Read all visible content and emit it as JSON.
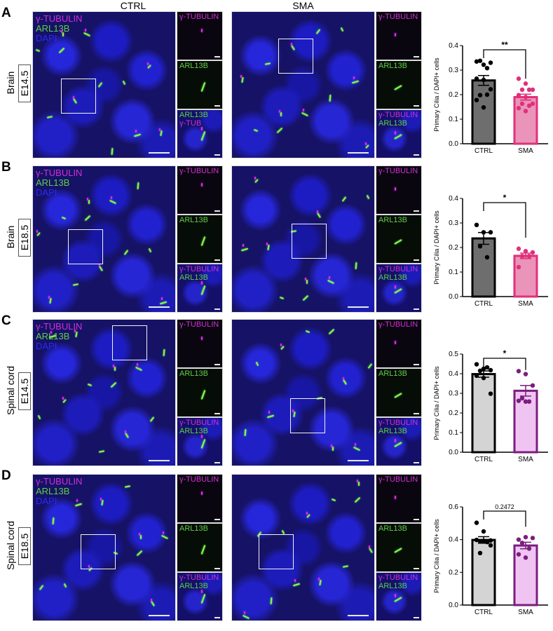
{
  "figure": {
    "columns": {
      "ctrl": "CTRL",
      "sma": "SMA"
    },
    "rows": [
      {
        "letter": "A",
        "tissue": "Brain",
        "stage": "E14.5",
        "main_labels": [
          "γ-TUBULIN",
          "ARL13B",
          "DAPI"
        ],
        "ctrl_insets": [
          [
            "γ-TUBULIN"
          ],
          [
            "ARL13B"
          ],
          [
            "ARL13B",
            "γ-TUB"
          ]
        ],
        "sma_insets": [
          [
            "γ-TUBULIN"
          ],
          [
            "ARL13B"
          ],
          [
            "γ-TUBULIN",
            "ARL13B"
          ]
        ]
      },
      {
        "letter": "B",
        "tissue": "Brain",
        "stage": "E18.5",
        "main_labels": [
          "γ-TUBULIN",
          "ARL13B",
          "DAPI"
        ],
        "ctrl_insets": [
          [
            "γ-TUBULIN"
          ],
          [
            "ARL13B"
          ],
          [
            "γ-TUBULIN",
            "ARL13B"
          ]
        ],
        "sma_insets": [
          [
            "γ-TUBULIN"
          ],
          [
            "ARL13B"
          ],
          [
            "γ-TUBULIN",
            "ARL13B"
          ]
        ]
      },
      {
        "letter": "C",
        "tissue": "Spinal cord",
        "stage": "E14.5",
        "main_labels": [
          "γ-TUBULIN",
          "ARL13B",
          "DAPI"
        ],
        "ctrl_insets": [
          [
            "γ-TUBULIN"
          ],
          [
            "ARL13B"
          ],
          [
            "γ-TUBULIN",
            "ARL13B"
          ]
        ],
        "sma_insets": [
          [
            "γ-TUBULIN"
          ],
          [
            "ARL13B"
          ],
          [
            "γ-TUBULIN",
            "ARL13B"
          ]
        ]
      },
      {
        "letter": "D",
        "tissue": "Spinal cord",
        "stage": "E18.5",
        "main_labels": [
          "γ-TUBULIN",
          "ARL13B",
          "DAPI"
        ],
        "ctrl_insets": [
          [
            "γ-TUBULIN"
          ],
          [
            "ARL13B"
          ],
          [
            "γ-TUBULIN",
            "ARL13B"
          ]
        ],
        "sma_insets": [
          [
            "γ-TUBULIN"
          ],
          [
            "ARL13B"
          ],
          [
            "γ-TUBULIN",
            "ARL13B"
          ]
        ]
      }
    ],
    "colors": {
      "tubulin": "#d22ed6",
      "arl13b": "#5fcf4a",
      "dapi": "#2a2aff"
    }
  },
  "chart_data": [
    {
      "panel": "A",
      "type": "bar",
      "title": "",
      "xlabel": "",
      "ylabel": "Primary Cilia / DAPI+ cells",
      "categories": [
        "CTRL",
        "SMA"
      ],
      "values": [
        0.258,
        0.19
      ],
      "sem": [
        0.02,
        0.012
      ],
      "points": [
        [
          0.335,
          0.322,
          0.33,
          0.338,
          0.308,
          0.265,
          0.26,
          0.222,
          0.198,
          0.2,
          0.178,
          0.148
        ],
        [
          0.265,
          0.245,
          0.22,
          0.22,
          0.22,
          0.198,
          0.19,
          0.163,
          0.163,
          0.155,
          0.145,
          0.133
        ]
      ],
      "yticks": [
        0.0,
        0.1,
        0.2,
        0.3,
        0.4
      ],
      "ylim": [
        0,
        0.4
      ],
      "significance": "**",
      "bar_colors": [
        "#6e6e6e",
        "#e994b8"
      ],
      "edge_colors": [
        "#000000",
        "#e0307a"
      ],
      "dot_colors": [
        "#000000",
        "#e0307a"
      ]
    },
    {
      "panel": "B",
      "type": "bar",
      "title": "",
      "xlabel": "",
      "ylabel": "Primary Cilia / DAPI+ cells",
      "categories": [
        "CTRL",
        "SMA"
      ],
      "values": [
        0.237,
        0.166
      ],
      "sem": [
        0.024,
        0.011
      ],
      "points": [
        [
          0.292,
          0.262,
          0.262,
          0.205,
          0.16
        ],
        [
          0.195,
          0.185,
          0.18,
          0.165,
          0.165,
          0.12
        ]
      ],
      "yticks": [
        0.0,
        0.1,
        0.2,
        0.3,
        0.4
      ],
      "ylim": [
        0,
        0.4
      ],
      "significance": "*",
      "bar_colors": [
        "#6e6e6e",
        "#e994b8"
      ],
      "edge_colors": [
        "#000000",
        "#e0307a"
      ],
      "dot_colors": [
        "#000000",
        "#e0307a"
      ]
    },
    {
      "panel": "C",
      "type": "bar",
      "title": "",
      "xlabel": "",
      "ylabel": "Primary Cilia / DAPI+ cells",
      "categories": [
        "CTRL",
        "SMA"
      ],
      "values": [
        0.398,
        0.313
      ],
      "sem": [
        0.016,
        0.027
      ],
      "points": [
        [
          0.448,
          0.425,
          0.418,
          0.415,
          0.432,
          0.39,
          0.378,
          0.298
        ],
        [
          0.413,
          0.398,
          0.34,
          0.275,
          0.258,
          0.262,
          0.258
        ]
      ],
      "yticks": [
        0.0,
        0.1,
        0.2,
        0.3,
        0.4,
        0.5
      ],
      "ylim": [
        0,
        0.5
      ],
      "significance": "*",
      "bar_colors": [
        "#d4d4d4",
        "#f0c4f2"
      ],
      "edge_colors": [
        "#000000",
        "#7a1e7e"
      ],
      "dot_colors": [
        "#000000",
        "#7a1e7e"
      ]
    },
    {
      "panel": "D",
      "type": "bar",
      "title": "",
      "xlabel": "",
      "ylabel": "Primary Cilia / DAPI+ cells",
      "categories": [
        "CTRL",
        "SMA"
      ],
      "values": [
        0.398,
        0.364
      ],
      "sem": [
        0.02,
        0.02
      ],
      "points": [
        [
          0.503,
          0.45,
          0.395,
          0.39,
          0.385,
          0.398,
          0.392,
          0.365,
          0.318
        ],
        [
          0.4,
          0.415,
          0.41,
          0.38,
          0.345,
          0.31,
          0.29
        ]
      ],
      "yticks": [
        0.0,
        0.2,
        0.4,
        0.6
      ],
      "ylim": [
        0,
        0.6
      ],
      "significance": "0.2472",
      "bar_colors": [
        "#d4d4d4",
        "#f0c4f2"
      ],
      "edge_colors": [
        "#000000",
        "#7a1e7e"
      ],
      "dot_colors": [
        "#000000",
        "#7a1e7e"
      ]
    }
  ]
}
